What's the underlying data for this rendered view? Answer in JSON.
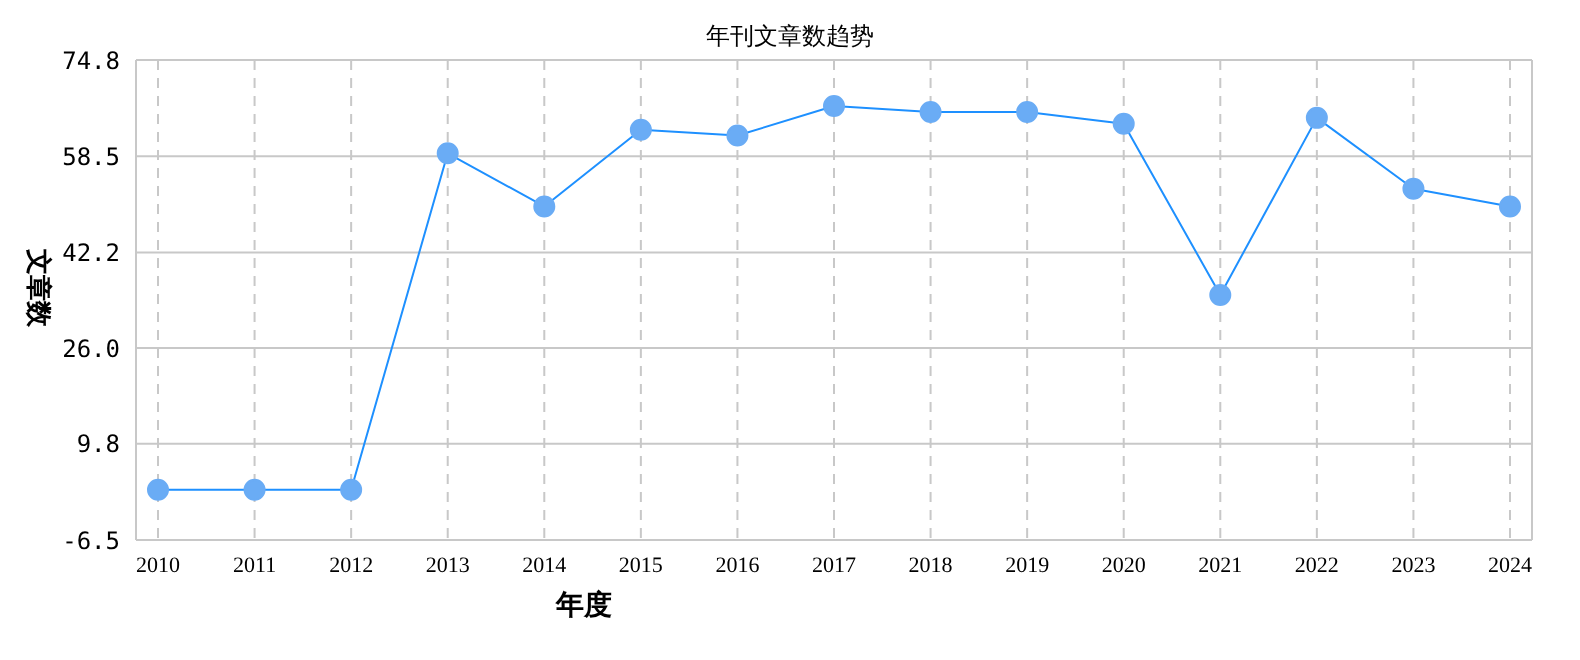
{
  "chart_data": {
    "type": "line",
    "title": "年刊文章数趋势",
    "xlabel": "年度",
    "ylabel": "文章数",
    "categories": [
      "2010",
      "2011",
      "2012",
      "2013",
      "2014",
      "2015",
      "2016",
      "2017",
      "2018",
      "2019",
      "2020",
      "2021",
      "2022",
      "2023",
      "2024"
    ],
    "series": [
      {
        "color": "#1e90ff",
        "values": [
          2,
          2,
          2,
          59,
          50,
          63,
          62,
          67,
          66,
          66,
          64,
          35,
          65,
          53,
          50
        ]
      }
    ],
    "ylim": [
      -6.5,
      74.8
    ],
    "yticks": [
      {
        "value": -6.5,
        "label": "-6.5"
      },
      {
        "value": 9.8,
        "label": "9.8"
      },
      {
        "value": 26,
        "label": "26.0"
      },
      {
        "value": 42.2,
        "label": "42.2"
      },
      {
        "value": 58.5,
        "label": "58.5"
      },
      {
        "value": 74.8,
        "label": "74.8"
      }
    ],
    "grid": true,
    "marker": "circle",
    "line_style": "solid"
  }
}
